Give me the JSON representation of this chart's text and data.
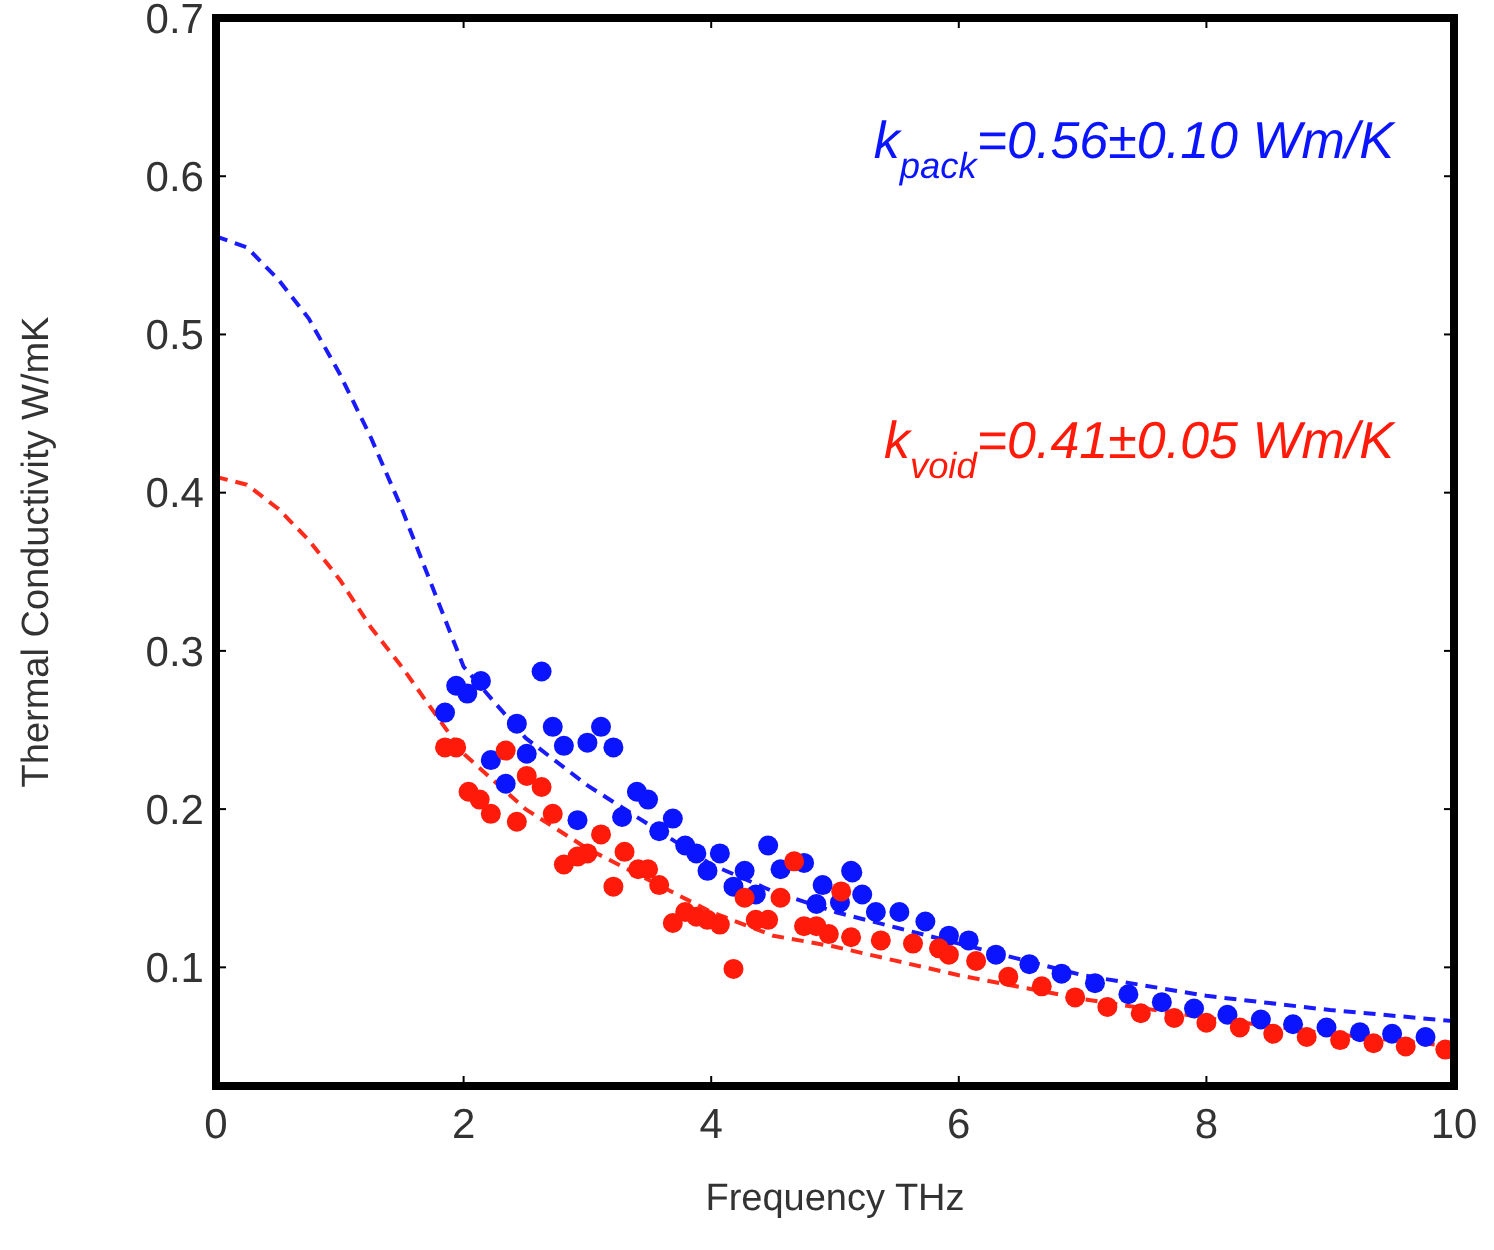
{
  "chart_data": {
    "type": "scatter",
    "xlabel": "Frequency THz",
    "ylabel": "Thermal Conductivity W/mK",
    "xlim": [
      0,
      10
    ],
    "ylim": [
      0.025,
      0.7
    ],
    "xticks": [
      0,
      2,
      4,
      6,
      8,
      10
    ],
    "yticks": [
      0.1,
      0.2,
      0.3,
      0.4,
      0.5,
      0.6,
      0.7
    ],
    "grid": false,
    "annotations": [
      "k$_{pack}$=0.56±0.10 Wm/K",
      "k$_{void}$=0.41±0.05 Wm/K"
    ],
    "series": [
      {
        "color": "#0a14ff",
        "marker": "circle",
        "x": [
          1.85,
          1.94,
          2.03,
          2.14,
          2.63,
          2.43,
          2.22,
          2.34,
          2.51,
          2.72,
          2.81,
          3.0,
          3.11,
          3.21,
          2.92,
          3.28,
          3.4,
          3.49,
          3.58,
          3.69,
          3.79,
          3.88,
          3.97,
          4.07,
          4.18,
          4.27,
          4.36,
          4.46,
          4.56,
          4.75,
          4.85,
          5.04,
          5.13,
          4.9,
          5.14,
          5.22,
          5.33,
          5.52,
          5.73,
          5.92,
          6.08,
          6.3,
          6.57,
          6.83,
          7.1,
          7.37,
          7.64,
          7.9,
          8.17,
          8.44,
          8.7,
          8.97,
          9.24,
          9.5,
          9.77
        ],
        "values": [
          0.261,
          0.278,
          0.273,
          0.281,
          0.287,
          0.254,
          0.231,
          0.216,
          0.235,
          0.252,
          0.24,
          0.242,
          0.252,
          0.239,
          0.193,
          0.195,
          0.211,
          0.206,
          0.186,
          0.194,
          0.177,
          0.172,
          0.161,
          0.172,
          0.151,
          0.161,
          0.146,
          0.177,
          0.162,
          0.166,
          0.14,
          0.141,
          0.161,
          0.152,
          0.16,
          0.146,
          0.135,
          0.135,
          0.129,
          0.12,
          0.117,
          0.108,
          0.102,
          0.096,
          0.09,
          0.083,
          0.078,
          0.074,
          0.07,
          0.067,
          0.064,
          0.062,
          0.059,
          0.058,
          0.056
        ]
      },
      {
        "color": "#ff1a0a",
        "marker": "circle",
        "x": [
          1.85,
          1.94,
          2.34,
          2.04,
          2.13,
          2.22,
          2.43,
          2.51,
          2.63,
          2.72,
          2.81,
          2.92,
          3.0,
          3.11,
          3.21,
          3.3,
          3.41,
          3.49,
          3.58,
          3.69,
          3.79,
          3.88,
          3.97,
          4.07,
          4.18,
          4.27,
          4.36,
          4.46,
          4.56,
          4.67,
          4.75,
          4.85,
          4.95,
          5.05,
          5.13,
          5.37,
          5.63,
          5.84,
          5.92,
          6.14,
          6.4,
          6.67,
          6.94,
          7.2,
          7.47,
          7.74,
          8.0,
          8.27,
          8.54,
          8.81,
          9.08,
          9.35,
          9.61,
          9.93
        ],
        "values": [
          0.239,
          0.239,
          0.237,
          0.211,
          0.206,
          0.197,
          0.192,
          0.221,
          0.214,
          0.197,
          0.165,
          0.17,
          0.172,
          0.184,
          0.151,
          0.173,
          0.162,
          0.162,
          0.152,
          0.128,
          0.135,
          0.132,
          0.13,
          0.127,
          0.099,
          0.144,
          0.13,
          0.13,
          0.144,
          0.167,
          0.126,
          0.126,
          0.121,
          0.148,
          0.119,
          0.117,
          0.115,
          0.112,
          0.108,
          0.104,
          0.094,
          0.088,
          0.081,
          0.075,
          0.071,
          0.068,
          0.065,
          0.062,
          0.058,
          0.056,
          0.054,
          0.052,
          0.05,
          0.048
        ]
      },
      {
        "type": "line",
        "color": "#1a1aff",
        "marker": "none",
        "line_style": "dashed",
        "x": [
          0,
          0.25,
          0.5,
          0.75,
          1,
          1.25,
          1.5,
          1.75,
          2,
          2.5,
          3,
          3.5,
          4,
          4.5,
          5,
          5.5,
          6,
          7,
          8,
          9,
          10
        ],
        "values": [
          0.562,
          0.555,
          0.535,
          0.51,
          0.475,
          0.435,
          0.39,
          0.34,
          0.29,
          0.245,
          0.215,
          0.19,
          0.165,
          0.148,
          0.135,
          0.125,
          0.115,
          0.095,
          0.082,
          0.073,
          0.066
        ]
      },
      {
        "type": "line",
        "color": "#ff2a1a",
        "marker": "none",
        "line_style": "dashed",
        "x": [
          0,
          0.25,
          0.5,
          0.75,
          1,
          1.25,
          1.5,
          2,
          2.5,
          3,
          3.5,
          4,
          4.5,
          5,
          6,
          7,
          8,
          9,
          10
        ],
        "values": [
          0.41,
          0.405,
          0.39,
          0.37,
          0.345,
          0.315,
          0.29,
          0.235,
          0.2,
          0.175,
          0.155,
          0.135,
          0.12,
          0.113,
          0.095,
          0.08,
          0.068,
          0.058,
          0.05
        ]
      }
    ]
  }
}
